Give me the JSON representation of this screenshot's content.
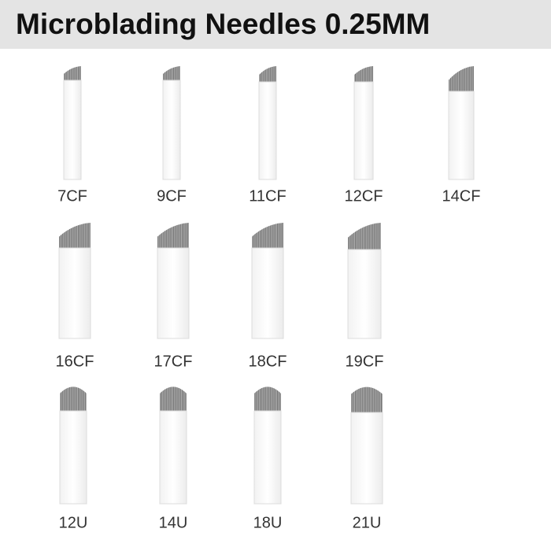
{
  "header": {
    "title": "Microblading Needles  0.25MM"
  },
  "rows": [
    {
      "items": [
        {
          "label": "7CF"
        },
        {
          "label": "9CF"
        },
        {
          "label": "11CF"
        },
        {
          "label": "12CF"
        },
        {
          "label": "14CF"
        }
      ]
    },
    {
      "items": [
        {
          "label": "16CF"
        },
        {
          "label": "17CF"
        },
        {
          "label": "18CF"
        },
        {
          "label": "19CF"
        }
      ]
    },
    {
      "items": [
        {
          "label": "12U"
        },
        {
          "label": "14U"
        },
        {
          "label": "18U"
        },
        {
          "label": "21U"
        }
      ]
    }
  ]
}
